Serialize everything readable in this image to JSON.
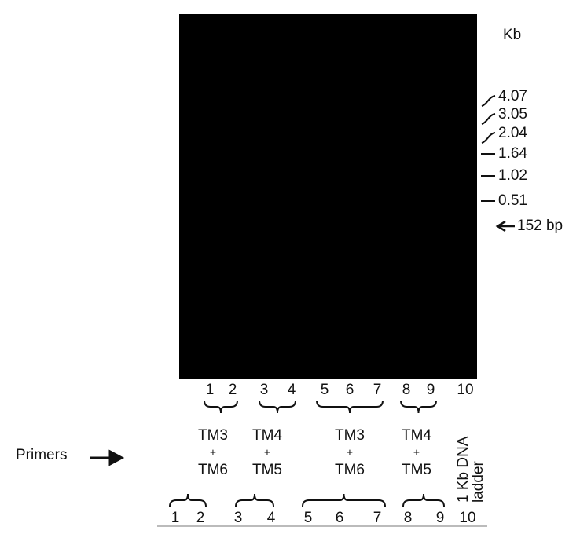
{
  "gel": {
    "unit_label": "Kb",
    "markers": [
      "4.07",
      "3.05",
      "2.04",
      "1.64",
      "1.02",
      "0.51"
    ],
    "band_marker": "152 bp"
  },
  "lanes_top": [
    "1",
    "2",
    "3",
    "4",
    "5",
    "6",
    "7",
    "8",
    "9",
    "10"
  ],
  "groups": [
    {
      "top": "TM3",
      "plus": "+",
      "bottom": "TM6"
    },
    {
      "top": "TM4",
      "plus": "+",
      "bottom": "TM5"
    },
    {
      "top": "TM3",
      "plus": "+",
      "bottom": "TM6"
    },
    {
      "top": "TM4",
      "plus": "+",
      "bottom": "TM5"
    }
  ],
  "ladder": [
    "1 Kb DNA",
    "ladder"
  ],
  "primers": "Primers",
  "lanes_bottom": [
    "1",
    "2",
    "3",
    "4",
    "5",
    "6",
    "7",
    "8",
    "9",
    "10"
  ]
}
